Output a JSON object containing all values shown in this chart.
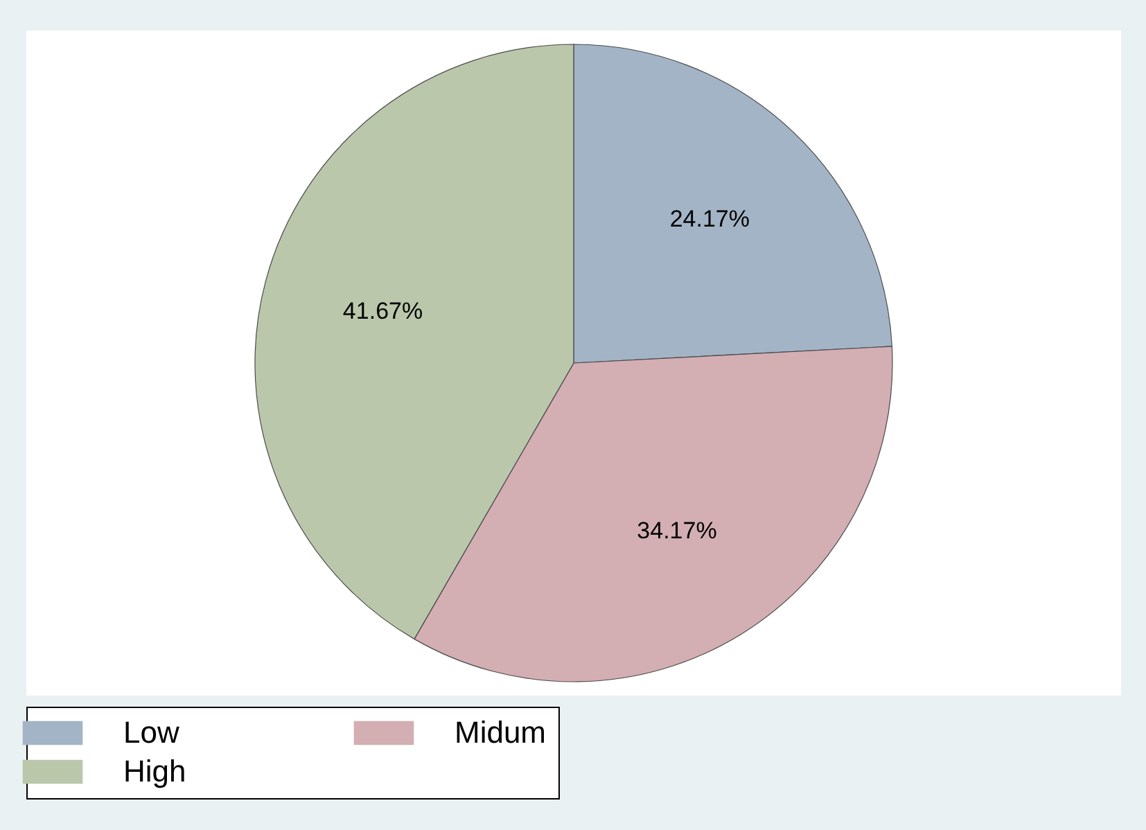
{
  "chart_data": {
    "type": "pie",
    "categories": [
      "Low",
      "Midum",
      "High"
    ],
    "values": [
      24.17,
      34.17,
      41.67
    ],
    "colors": [
      "#a3b4c6",
      "#d3aeb2",
      "#bbc7ab"
    ],
    "value_labels": [
      "24.17%",
      "34.17%",
      "41.67%"
    ],
    "legend": "bottom"
  }
}
